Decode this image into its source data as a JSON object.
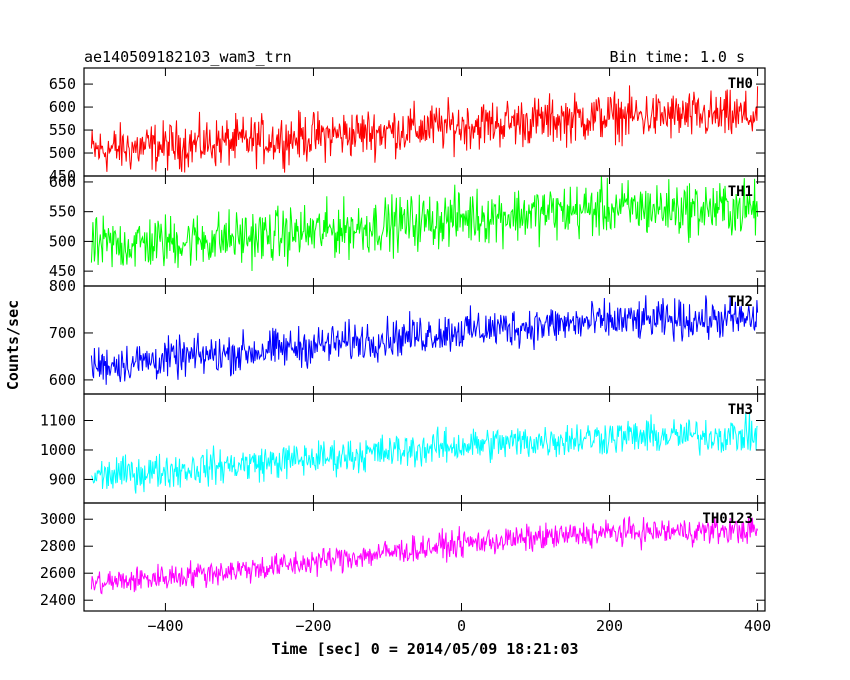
{
  "header": {
    "title": "ae140509182103_wam3_trn",
    "bin_time": "Bin time: 1.0 s"
  },
  "xlabel": "Time [sec] 0 = 2014/05/09 18:21:03",
  "ylabel": "Counts/sec",
  "chart_data": {
    "type": "line",
    "x_range": [
      -510,
      410
    ],
    "x_ticks": [
      -400,
      -200,
      0,
      200,
      400
    ],
    "x_tick_labels": [
      "−400",
      "−200",
      "0",
      "200",
      "400"
    ],
    "bin_seconds": 1.0,
    "x_start": -500,
    "x_end": 400,
    "panels": [
      {
        "name": "TH0",
        "color": "#ff0000",
        "ylim": [
          450,
          685
        ],
        "yticks": [
          450,
          500,
          550,
          600,
          650
        ],
        "trend": [
          [
            -500,
            505
          ],
          [
            -250,
            530
          ],
          [
            0,
            560
          ],
          [
            200,
            580
          ],
          [
            400,
            580
          ]
        ],
        "noise": 40
      },
      {
        "name": "TH1",
        "color": "#00ff00",
        "ylim": [
          425,
          610
        ],
        "yticks": [
          450,
          500,
          550,
          600
        ],
        "trend": [
          [
            -500,
            492
          ],
          [
            -250,
            510
          ],
          [
            0,
            540
          ],
          [
            200,
            555
          ],
          [
            400,
            555
          ]
        ],
        "noise": 35
      },
      {
        "name": "TH2",
        "color": "#0000ff",
        "ylim": [
          570,
          800
        ],
        "yticks": [
          600,
          700,
          800
        ],
        "trend": [
          [
            -500,
            630
          ],
          [
            -250,
            665
          ],
          [
            0,
            705
          ],
          [
            200,
            725
          ],
          [
            400,
            730
          ]
        ],
        "noise": 32
      },
      {
        "name": "TH3",
        "color": "#00ffff",
        "ylim": [
          820,
          1190
        ],
        "yticks": [
          900,
          1000,
          1100
        ],
        "trend": [
          [
            -500,
            910
          ],
          [
            -250,
            960
          ],
          [
            0,
            1015
          ],
          [
            200,
            1045
          ],
          [
            400,
            1050
          ]
        ],
        "noise": 45
      },
      {
        "name": "TH0123",
        "color": "#ff00ff",
        "ylim": [
          2320,
          3120
        ],
        "yticks": [
          2400,
          2600,
          2800,
          3000
        ],
        "trend": [
          [
            -500,
            2520
          ],
          [
            -250,
            2650
          ],
          [
            0,
            2820
          ],
          [
            200,
            2900
          ],
          [
            400,
            2920
          ]
        ],
        "noise": 75
      }
    ]
  }
}
